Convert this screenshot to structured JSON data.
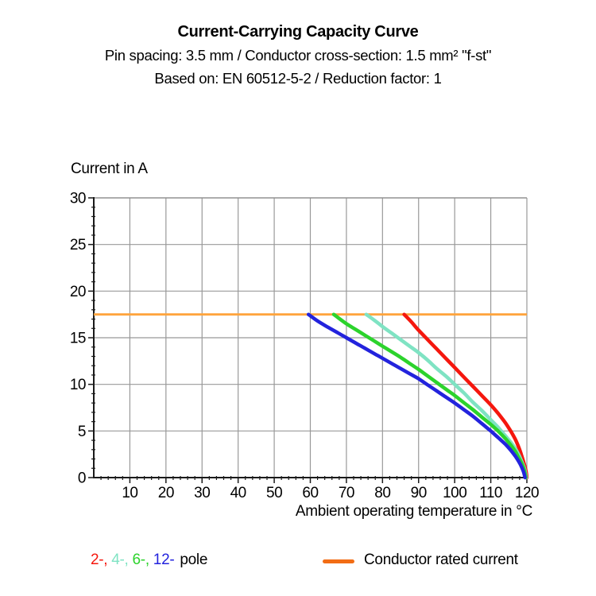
{
  "colors": {
    "background": "#ffffff",
    "grid": "#999999",
    "frame": "#8c8c8c",
    "axis": "#1a1a1a",
    "text": "#000000"
  },
  "chart_data": {
    "type": "line",
    "title": "Current-Carrying Capacity Curve",
    "subtitle1": "Pin spacing: 3.5 mm / Conductor cross-section: 1.5 mm² \"f-st\"",
    "subtitle2": "Based on: EN 60512-5-2 / Reduction factor: 1",
    "xlabel": "Ambient operating temperature in °C",
    "ylabel": "Current in A",
    "xlim": [
      0,
      120
    ],
    "ylim": [
      0,
      30
    ],
    "x_ticks": [
      10,
      20,
      30,
      40,
      50,
      60,
      70,
      80,
      90,
      100,
      110,
      120
    ],
    "y_ticks": [
      0,
      5,
      10,
      15,
      20,
      25,
      30
    ],
    "x_minor_step": 2,
    "y_minor_step": 1,
    "grid": true,
    "rated_current": {
      "label": "Conductor rated current",
      "value": 17.5,
      "x_range": [
        0,
        120
      ],
      "color": "#ffa43c"
    },
    "series": [
      {
        "name": "2-pole",
        "legend_label": "2-",
        "color": "#f5170e",
        "points": [
          [
            86,
            17.5
          ],
          [
            88,
            16.7
          ],
          [
            90,
            15.8
          ],
          [
            92.5,
            14.8
          ],
          [
            95,
            13.8
          ],
          [
            97.5,
            12.8
          ],
          [
            100,
            11.8
          ],
          [
            102.5,
            10.8
          ],
          [
            105,
            9.8
          ],
          [
            107.5,
            8.8
          ],
          [
            110,
            7.8
          ],
          [
            112,
            6.9
          ],
          [
            114,
            5.9
          ],
          [
            115.5,
            5.0
          ],
          [
            116.8,
            4.1
          ],
          [
            117.8,
            3.2
          ],
          [
            118.6,
            2.3
          ],
          [
            119.3,
            1.4
          ],
          [
            119.8,
            0.6
          ],
          [
            120,
            0
          ]
        ]
      },
      {
        "name": "4-pole",
        "legend_label": "4-",
        "color": "#7fe3c3",
        "points": [
          [
            75.5,
            17.5
          ],
          [
            78,
            16.8
          ],
          [
            80,
            16.2
          ],
          [
            82.5,
            15.5
          ],
          [
            85,
            14.8
          ],
          [
            87.5,
            14.1
          ],
          [
            90,
            13.4
          ],
          [
            92.5,
            12.6
          ],
          [
            95,
            11.7
          ],
          [
            97.5,
            10.9
          ],
          [
            100,
            10.0
          ],
          [
            102.5,
            9.1
          ],
          [
            105,
            8.1
          ],
          [
            107.5,
            7.2
          ],
          [
            110,
            6.2
          ],
          [
            112,
            5.4
          ],
          [
            114,
            4.5
          ],
          [
            115.5,
            3.8
          ],
          [
            116.8,
            3.1
          ],
          [
            117.8,
            2.4
          ],
          [
            118.6,
            1.7
          ],
          [
            119.3,
            1.0
          ],
          [
            119.85,
            0
          ]
        ]
      },
      {
        "name": "6-pole",
        "legend_label": "6-",
        "color": "#2cd32c",
        "points": [
          [
            66.5,
            17.5
          ],
          [
            70,
            16.5
          ],
          [
            72.5,
            15.9
          ],
          [
            75,
            15.3
          ],
          [
            77.5,
            14.7
          ],
          [
            80,
            14.1
          ],
          [
            82.5,
            13.5
          ],
          [
            85,
            12.9
          ],
          [
            87.5,
            12.25
          ],
          [
            90,
            11.6
          ],
          [
            92.5,
            10.9
          ],
          [
            95,
            10.2
          ],
          [
            97.5,
            9.5
          ],
          [
            100,
            8.8
          ],
          [
            102.5,
            8.05
          ],
          [
            105,
            7.3
          ],
          [
            107.5,
            6.5
          ],
          [
            110,
            5.7
          ],
          [
            112,
            5.0
          ],
          [
            114,
            4.2
          ],
          [
            115.5,
            3.5
          ],
          [
            116.8,
            2.8
          ],
          [
            117.8,
            2.1
          ],
          [
            118.6,
            1.5
          ],
          [
            119.2,
            0.9
          ],
          [
            119.7,
            0
          ]
        ]
      },
      {
        "name": "12-pole",
        "legend_label": "12-",
        "color": "#2323dd",
        "points": [
          [
            59.5,
            17.5
          ],
          [
            62,
            16.8
          ],
          [
            65,
            16.1
          ],
          [
            67.5,
            15.55
          ],
          [
            70,
            15.0
          ],
          [
            72.5,
            14.45
          ],
          [
            75,
            13.9
          ],
          [
            77.5,
            13.35
          ],
          [
            80,
            12.8
          ],
          [
            82.5,
            12.25
          ],
          [
            85,
            11.7
          ],
          [
            87.5,
            11.15
          ],
          [
            90,
            10.6
          ],
          [
            92.5,
            9.95
          ],
          [
            95,
            9.3
          ],
          [
            97.5,
            8.65
          ],
          [
            100,
            8.0
          ],
          [
            102.5,
            7.3
          ],
          [
            105,
            6.6
          ],
          [
            107.5,
            5.8
          ],
          [
            110,
            5.0
          ],
          [
            112,
            4.3
          ],
          [
            114,
            3.6
          ],
          [
            115.5,
            2.95
          ],
          [
            116.8,
            2.3
          ],
          [
            117.8,
            1.7
          ],
          [
            118.6,
            1.1
          ],
          [
            119.1,
            0.6
          ],
          [
            119.5,
            0
          ]
        ]
      }
    ],
    "legend": {
      "pole_suffix": "pole",
      "item_separator": ", ",
      "rated_label": "Conductor rated current",
      "rated_swatch_color": "#f26d15"
    }
  }
}
